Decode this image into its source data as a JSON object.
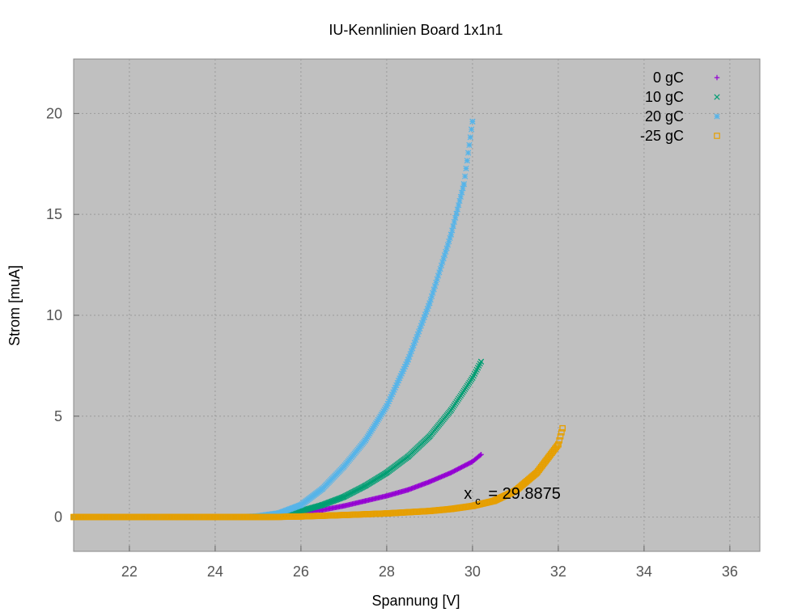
{
  "chart_data": {
    "type": "scatter",
    "title": "IU-Kennlinien Board 1x1n1",
    "xlabel": "Spannung [V]",
    "ylabel": "Strom [muA]",
    "xlim": [
      20.7,
      36.7
    ],
    "ylim": [
      -1.7,
      22.7
    ],
    "xticks": [
      22,
      24,
      26,
      28,
      30,
      32,
      34,
      36
    ],
    "yticks": [
      0,
      5,
      10,
      15,
      20
    ],
    "grid": true,
    "legend_position": "top-right",
    "background": "#c0c0c0",
    "annotation": {
      "main": "x",
      "sub": "c",
      "rest": " = 29.8875",
      "x": 29.8,
      "y": 0.9
    },
    "series": [
      {
        "name": "0 gC",
        "marker": "plus",
        "color": "#9400d3",
        "x": [
          20.7,
          21.5,
          22.5,
          23.5,
          24.5,
          25.0,
          25.5,
          26.0,
          26.5,
          27.0,
          27.5,
          28.0,
          28.5,
          29.0,
          29.5,
          30.0,
          30.2
        ],
        "y": [
          0,
          0,
          0,
          0,
          0,
          0.02,
          0.1,
          0.2,
          0.35,
          0.55,
          0.8,
          1.05,
          1.35,
          1.75,
          2.2,
          2.75,
          3.1
        ]
      },
      {
        "name": "10 gC",
        "marker": "cross",
        "color": "#009e73",
        "x": [
          20.7,
          21.5,
          22.5,
          23.5,
          24.5,
          25.0,
          25.5,
          26.0,
          26.5,
          27.0,
          27.5,
          28.0,
          28.5,
          29.0,
          29.5,
          30.0,
          30.2
        ],
        "y": [
          0,
          0,
          0,
          0,
          0,
          0.03,
          0.12,
          0.3,
          0.6,
          1.0,
          1.55,
          2.2,
          3.0,
          4.0,
          5.3,
          6.9,
          7.7
        ]
      },
      {
        "name": "20 gC",
        "marker": "star",
        "color": "#56b4e9",
        "x": [
          20.7,
          21.5,
          22.5,
          23.5,
          24.5,
          25.0,
          25.5,
          26.0,
          26.5,
          27.0,
          27.5,
          28.0,
          28.5,
          29.0,
          29.5,
          29.8,
          30.0
        ],
        "y": [
          0,
          0,
          0,
          0,
          0,
          0.05,
          0.2,
          0.6,
          1.4,
          2.5,
          3.8,
          5.5,
          7.8,
          10.6,
          14.0,
          16.5,
          19.6
        ]
      },
      {
        "name": "-25 gC",
        "marker": "square",
        "color": "#e69f00",
        "x": [
          20.7,
          21.5,
          22.5,
          23.5,
          24.5,
          25.0,
          25.5,
          26.0,
          27.0,
          28.0,
          29.0,
          29.5,
          30.0,
          30.5,
          31.0,
          31.5,
          32.0,
          32.1
        ],
        "y": [
          0,
          0,
          0,
          0,
          0,
          0,
          0.01,
          0.03,
          0.1,
          0.18,
          0.3,
          0.4,
          0.55,
          0.8,
          1.3,
          2.2,
          3.6,
          4.4
        ]
      }
    ]
  }
}
